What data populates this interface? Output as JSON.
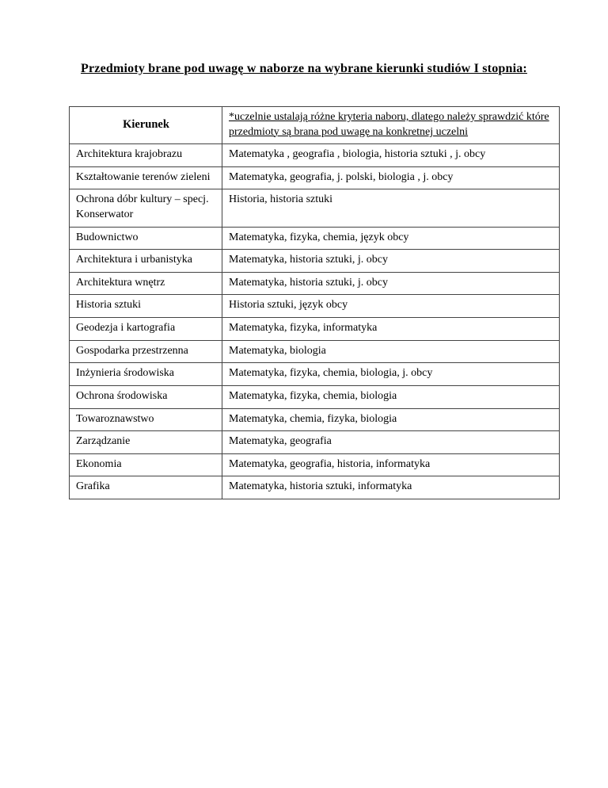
{
  "page": {
    "title": "Przedmioty brane pod uwagę w naborze na wybrane kierunki studiów I stopnia:"
  },
  "table": {
    "header": {
      "col1": "Kierunek",
      "col2": "*uczelnie ustalają różne kryteria naboru, dlatego należy sprawdzić które przedmioty są brana pod uwagę na konkretnej uczelni"
    },
    "rows": [
      {
        "kierunek": "Architektura krajobrazu",
        "przedmioty": "Matematyka , geografia , biologia, historia sztuki , j. obcy"
      },
      {
        "kierunek": "Kształtowanie terenów zieleni",
        "przedmioty": "Matematyka, geografia, j. polski, biologia , j. obcy"
      },
      {
        "kierunek": "Ochrona dóbr kultury – specj. Konserwator",
        "przedmioty": "Historia, historia sztuki"
      },
      {
        "kierunek": "Budownictwo",
        "przedmioty": "Matematyka, fizyka, chemia, język obcy"
      },
      {
        "kierunek": "Architektura i urbanistyka",
        "przedmioty": "Matematyka, historia sztuki, j. obcy"
      },
      {
        "kierunek": "Architektura wnętrz",
        "przedmioty": "Matematyka, historia sztuki, j. obcy"
      },
      {
        "kierunek": "Historia sztuki",
        "przedmioty": "Historia sztuki, język obcy"
      },
      {
        "kierunek": "Geodezja i kartografia",
        "przedmioty": "Matematyka, fizyka, informatyka"
      },
      {
        "kierunek": "Gospodarka przestrzenna",
        "przedmioty": "Matematyka, biologia"
      },
      {
        "kierunek": "Inżynieria środowiska",
        "przedmioty": "Matematyka, fizyka, chemia, biologia, j. obcy"
      },
      {
        "kierunek": "Ochrona środowiska",
        "przedmioty": "Matematyka, fizyka, chemia, biologia"
      },
      {
        "kierunek": "Towaroznawstwo",
        "przedmioty": "Matematyka, chemia, fizyka, biologia"
      },
      {
        "kierunek": "Zarządzanie",
        "przedmioty": "Matematyka, geografia"
      },
      {
        "kierunek": "Ekonomia",
        "przedmioty": "Matematyka, geografia, historia, informatyka"
      },
      {
        "kierunek": "Grafika",
        "przedmioty": "Matematyka, historia sztuki, informatyka"
      }
    ],
    "colors": {
      "border": "#444444",
      "text": "#000000",
      "page_background": "#ffffff"
    }
  }
}
